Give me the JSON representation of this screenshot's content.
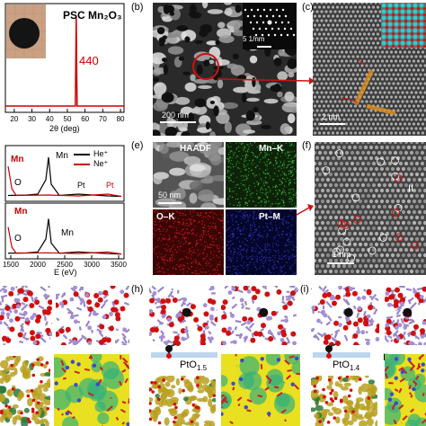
{
  "panel_letters": {
    "b": "(b)",
    "c": "(c)",
    "e": "(e)",
    "f": "(f)",
    "h": "(h)",
    "i": "(i)"
  },
  "panel_a": {
    "title": "PSC Mn₂O₃",
    "peak_label": "440",
    "xlabel": "2θ (deg)",
    "x_ticks": [
      "20",
      "30",
      "40",
      "50",
      "60",
      "70",
      "80"
    ]
  },
  "panel_d": {
    "legend": [
      {
        "name": "He⁺",
        "color": "#000000"
      },
      {
        "name": "Ne⁺",
        "color": "#cc0000"
      }
    ],
    "top_labels": {
      "mn_red": "Mn",
      "mn_black": "Mn",
      "pt_black": "Pt",
      "pt_red": "Pt",
      "circle": "O"
    },
    "bottom_labels": {
      "mn_red": "Mn",
      "mn_black": "Mn",
      "circle": "O"
    },
    "xlabel": "E (eV)",
    "x_ticks": [
      "1500",
      "2000",
      "2500",
      "3000",
      "3500"
    ]
  },
  "panel_b": {
    "scale_bar": "200 nm",
    "fft_scale": "5 1/nm"
  },
  "panel_c": {
    "scale_bar": "2 nm"
  },
  "panel_e": {
    "tiles": [
      "HAADF",
      "Mn–K",
      "O–K",
      "Pt–M"
    ],
    "scale_bar": "50 nm"
  },
  "panel_f": {
    "scale_bar": "1 nm",
    "roman": "II"
  },
  "panel_h": {
    "formula": "PtO",
    "subscript": "1.5",
    "roman": "I"
  },
  "panel_i": {
    "formula": "PtO",
    "subscript": "1.4",
    "roman": "II"
  },
  "colors": {
    "red_annot": "#d01010",
    "dark_bg": "#1a1a1a",
    "charge_yellow": "#e8e020"
  },
  "chart_data": [
    {
      "type": "line",
      "title": "PSC Mn₂O₃",
      "xlabel": "2θ (deg)",
      "ylabel": "",
      "xlim": [
        15,
        82
      ],
      "series": [
        {
          "x": [
            15,
            54.5,
            55,
            55.5,
            82
          ],
          "y": [
            0.02,
            0.02,
            1.0,
            0.02,
            0.02
          ]
        }
      ],
      "annotations": [
        "440"
      ]
    },
    {
      "type": "line",
      "xlabel": "E (eV)",
      "xlim": [
        1400,
        3600
      ],
      "series": [
        {
          "name": "He⁺",
          "x": [
            1450,
            1800,
            2000,
            2150,
            2200,
            2250,
            2400,
            2750,
            3300,
            3550
          ],
          "y": [
            0.05,
            0.06,
            0.08,
            0.4,
            0.9,
            0.3,
            0.05,
            0.08,
            0.04,
            0.03
          ]
        },
        {
          "name": "Ne⁺",
          "x": [
            1450,
            1520,
            1600,
            2200,
            2750,
            3300,
            3550
          ],
          "y": [
            0.7,
            0.2,
            0.05,
            0.06,
            0.04,
            0.08,
            0.03
          ]
        }
      ]
    }
  ]
}
